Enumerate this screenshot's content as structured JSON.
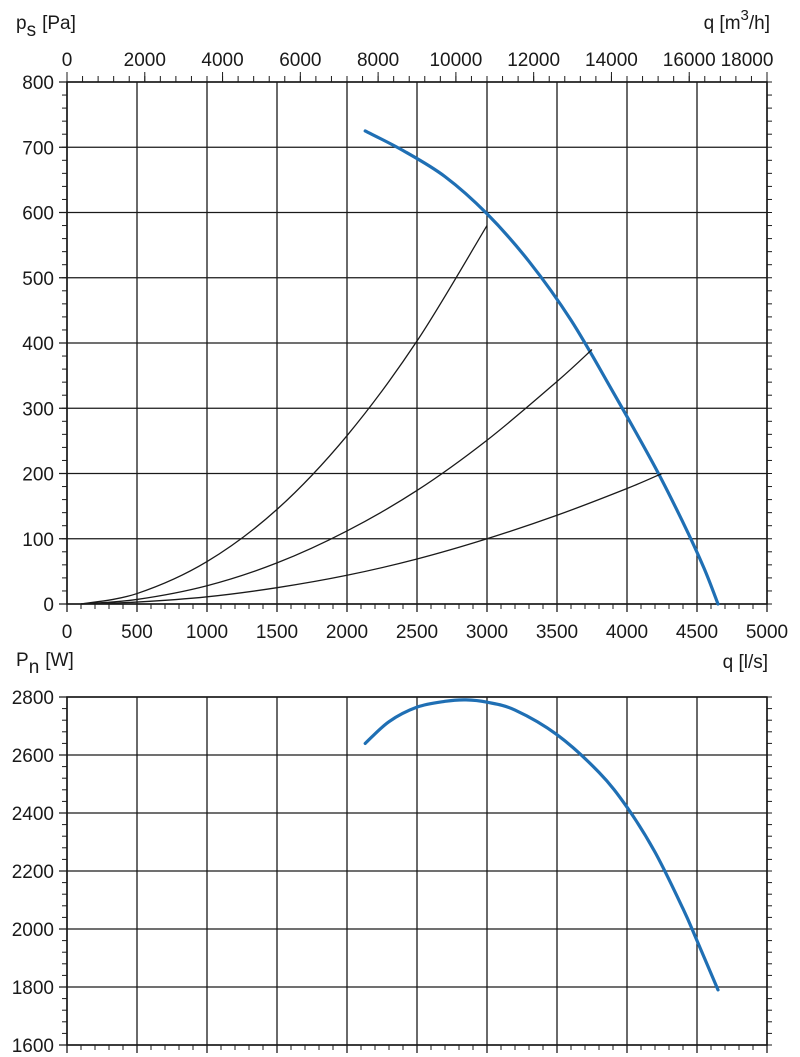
{
  "chart_data": [
    {
      "type": "line",
      "ylabel": "p",
      "ylabel_sub": "s",
      "ylabel_unit": "[Pa]",
      "x_top_label_prefix": "q [m",
      "x_top_label_sup": "3",
      "x_top_label_suffix": "/h]",
      "xlim": [
        0,
        5000
      ],
      "ylim": [
        0,
        800
      ],
      "x_ticks": [
        0,
        500,
        1000,
        1500,
        2000,
        2500,
        3000,
        3500,
        4000,
        4500,
        5000
      ],
      "x_tick_labels": [
        "0",
        "500",
        "1000",
        "1500",
        "2000",
        "2500",
        "3000",
        "3500",
        "4000",
        "4500",
        "5000"
      ],
      "y_ticks": [
        0,
        100,
        200,
        300,
        400,
        500,
        600,
        700,
        800
      ],
      "y_tick_labels": [
        "0",
        "100",
        "200",
        "300",
        "400",
        "500",
        "600",
        "700",
        "800"
      ],
      "x_top_ticks": [
        0,
        2000,
        4000,
        6000,
        8000,
        10000,
        12000,
        14000,
        16000,
        18000
      ],
      "x_top_tick_labels": [
        "0",
        "2000",
        "4000",
        "6000",
        "8000",
        "10000",
        "12000",
        "14000",
        "16000",
        "18000"
      ],
      "x_top_factor": 3.6,
      "grid": true,
      "series": [
        {
          "color": "#1f6fb4",
          "x": [
            2130,
            2400,
            2700,
            3000,
            3300,
            3600,
            3900,
            4200,
            4400,
            4550,
            4650
          ],
          "y": [
            725,
            695,
            655,
            598,
            525,
            435,
            325,
            210,
            125,
            55,
            0
          ]
        },
        {
          "color": "#1a1a1a",
          "x": [
            100,
            500,
            1000,
            1500,
            2000,
            2500,
            3000
          ],
          "y": [
            0,
            16,
            65,
            145,
            258,
            403,
            580
          ]
        },
        {
          "color": "#1a1a1a",
          "x": [
            100,
            500,
            1000,
            1500,
            2000,
            2500,
            3000,
            3500,
            3750
          ],
          "y": [
            0,
            7,
            28,
            63,
            112,
            174,
            251,
            341,
            390
          ]
        },
        {
          "color": "#1a1a1a",
          "x": [
            100,
            500,
            1000,
            1500,
            2000,
            2500,
            3000,
            3500,
            4000,
            4250
          ],
          "y": [
            0,
            3,
            11,
            25,
            44,
            69,
            100,
            136,
            177,
            200
          ]
        }
      ]
    },
    {
      "type": "line",
      "ylabel": "P",
      "ylabel_sub": "n",
      "ylabel_unit": "[W]",
      "xlabel": "q [l/s]",
      "xlim": [
        0,
        5000
      ],
      "ylim": [
        1600,
        2800
      ],
      "x_ticks": [
        0,
        500,
        1000,
        1500,
        2000,
        2500,
        3000,
        3500,
        4000,
        4500,
        5000
      ],
      "y_ticks": [
        1600,
        1800,
        2000,
        2200,
        2400,
        2600,
        2800
      ],
      "y_tick_labels": [
        "1600",
        "1800",
        "2000",
        "2200",
        "2400",
        "2600",
        "2800"
      ],
      "grid": true,
      "series": [
        {
          "color": "#1f6fb4",
          "x": [
            2130,
            2300,
            2500,
            2700,
            2850,
            3000,
            3200,
            3500,
            3800,
            4000,
            4200,
            4400,
            4500,
            4650
          ],
          "y": [
            2640,
            2715,
            2765,
            2785,
            2790,
            2782,
            2755,
            2670,
            2540,
            2420,
            2265,
            2070,
            1960,
            1790
          ]
        }
      ]
    }
  ]
}
